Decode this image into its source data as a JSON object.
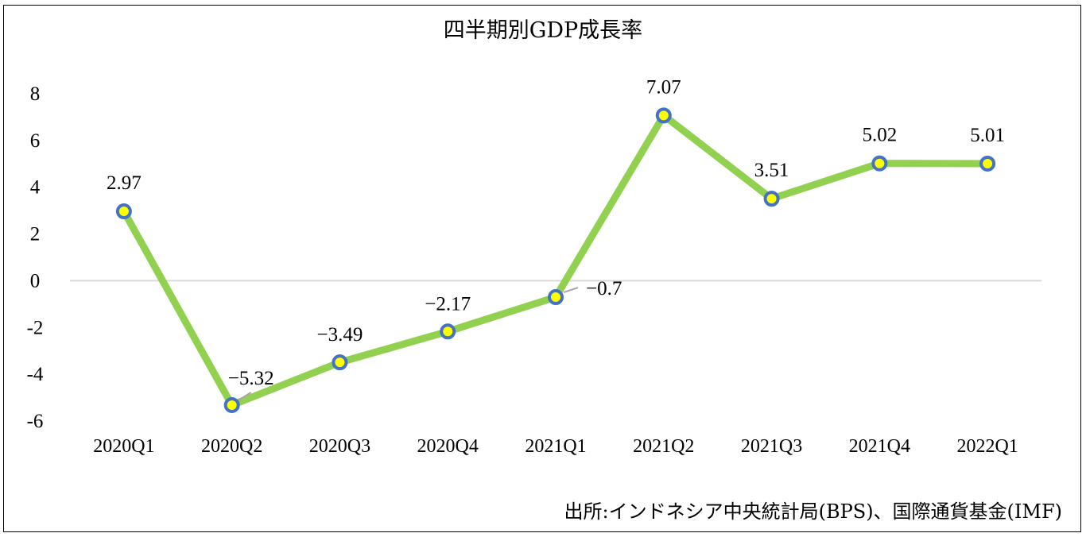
{
  "chart_data": {
    "type": "line",
    "title": "四半期別GDP成長率",
    "categories": [
      "2020Q1",
      "2020Q2",
      "2020Q3",
      "2020Q4",
      "2021Q1",
      "2021Q2",
      "2021Q3",
      "2021Q4",
      "2022Q1"
    ],
    "series": [
      {
        "values": [
          2.97,
          -5.32,
          -3.49,
          -2.17,
          -0.7,
          7.07,
          3.51,
          5.02,
          5.01
        ],
        "labels": [
          "2.97",
          "−5.32",
          "−3.49",
          "−2.17",
          "−0.7",
          "7.07",
          "3.51",
          "5.02",
          "5.01"
        ]
      }
    ],
    "ylim": [
      -6,
      8
    ],
    "yticks": [
      8,
      6,
      4,
      2,
      0,
      -2,
      -4,
      -6
    ],
    "ytick_labels": [
      "8",
      "6",
      "4",
      "2",
      "0",
      "-2",
      "-4",
      "-6"
    ],
    "xlabel": "",
    "ylabel": "",
    "legend": "none",
    "grid": "zero-line only",
    "colors": {
      "line": "#92d050",
      "marker_fill": "#ffff00",
      "marker_edge": "#4472c4",
      "zero_line": "#d9d9d9"
    },
    "source_note": "出所:インドネシア中央統計局(BPS)、国際通貨基金(IMF)"
  }
}
